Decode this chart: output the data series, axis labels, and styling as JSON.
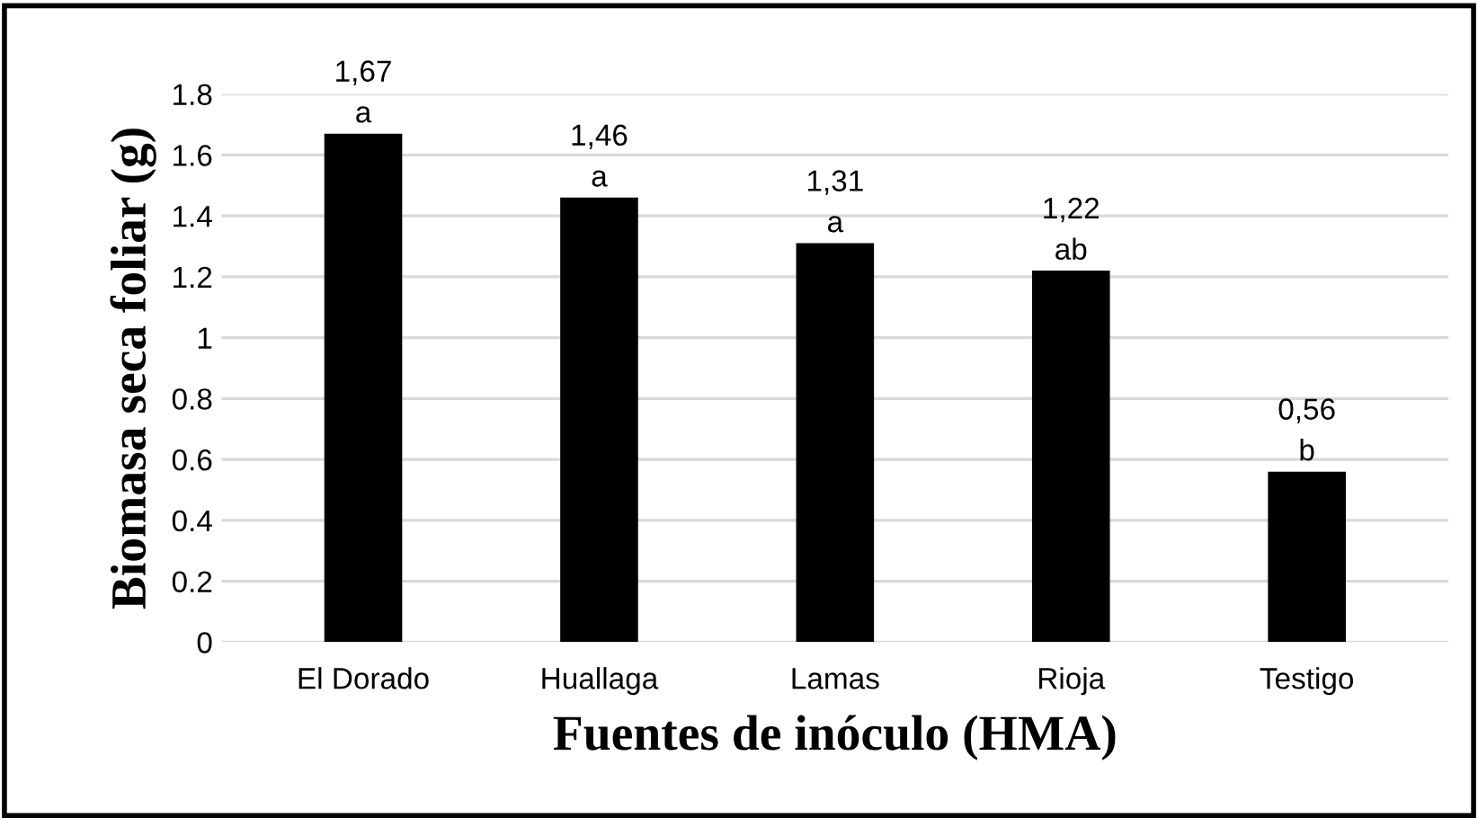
{
  "chart_data": {
    "type": "bar",
    "xlabel": "Fuentes de inóculo (HMA)",
    "ylabel": "Biomasa seca foliar (g)",
    "categories": [
      "El Dorado",
      "Huallaga",
      "Lamas",
      "Rioja",
      "Testigo"
    ],
    "values": [
      1.67,
      1.46,
      1.31,
      1.22,
      0.56
    ],
    "value_labels": [
      "1,67\na",
      "1,46\na",
      "1,31\na",
      "1,22\nab",
      "0,56\nb"
    ],
    "color": "#000000",
    "ylim": [
      0,
      1.8
    ],
    "yticks": [
      0,
      {
        "value": 0.2,
        "label": "0.2"
      },
      {
        "value": 0.4,
        "label": "0.4"
      },
      {
        "value": 0.6,
        "label": "0.6"
      },
      {
        "value": 0.8,
        "label": "0.8"
      },
      1,
      {
        "value": 1.2,
        "label": "1.2"
      },
      {
        "value": 1.4,
        "label": "1.4"
      },
      {
        "value": 1.6,
        "label": "1.6"
      },
      {
        "value": 1.8,
        "label": "1.8"
      }
    ],
    "grid": "y"
  }
}
